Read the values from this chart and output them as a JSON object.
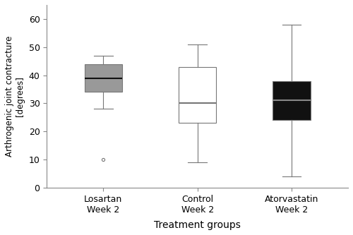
{
  "groups": [
    "Losartan\nWeek 2",
    "Control\nWeek 2",
    "Atorvastatin\nWeek 2"
  ],
  "box_data": [
    {
      "whislo": 28,
      "q1": 34,
      "med": 39,
      "q3": 44,
      "whishi": 47,
      "fliers": [
        10
      ]
    },
    {
      "whislo": 9,
      "q1": 23,
      "med": 30,
      "q3": 43,
      "whishi": 51,
      "fliers": []
    },
    {
      "whislo": 4,
      "q1": 24,
      "med": 31,
      "q3": 38,
      "whishi": 58,
      "fliers": []
    }
  ],
  "box_facecolors": [
    "#999999",
    "#ffffff",
    "#111111"
  ],
  "box_edgecolor": "#777777",
  "median_colors": [
    "#111111",
    "#777777",
    "#888888"
  ],
  "whisker_color": "#777777",
  "cap_color": "#777777",
  "flier_color": "#777777",
  "ylabel": "Arthrogenic joint contracture\n[degrees]",
  "xlabel": "Treatment groups",
  "ylim": [
    0,
    65
  ],
  "yticks": [
    0,
    10,
    20,
    30,
    40,
    50,
    60
  ],
  "background_color": "#ffffff",
  "figsize": [
    5.0,
    3.33
  ],
  "dpi": 100,
  "box_width": 0.4,
  "xlabel_fontsize": 10,
  "ylabel_fontsize": 8.5,
  "tick_fontsize": 9,
  "xtick_fontsize": 9
}
